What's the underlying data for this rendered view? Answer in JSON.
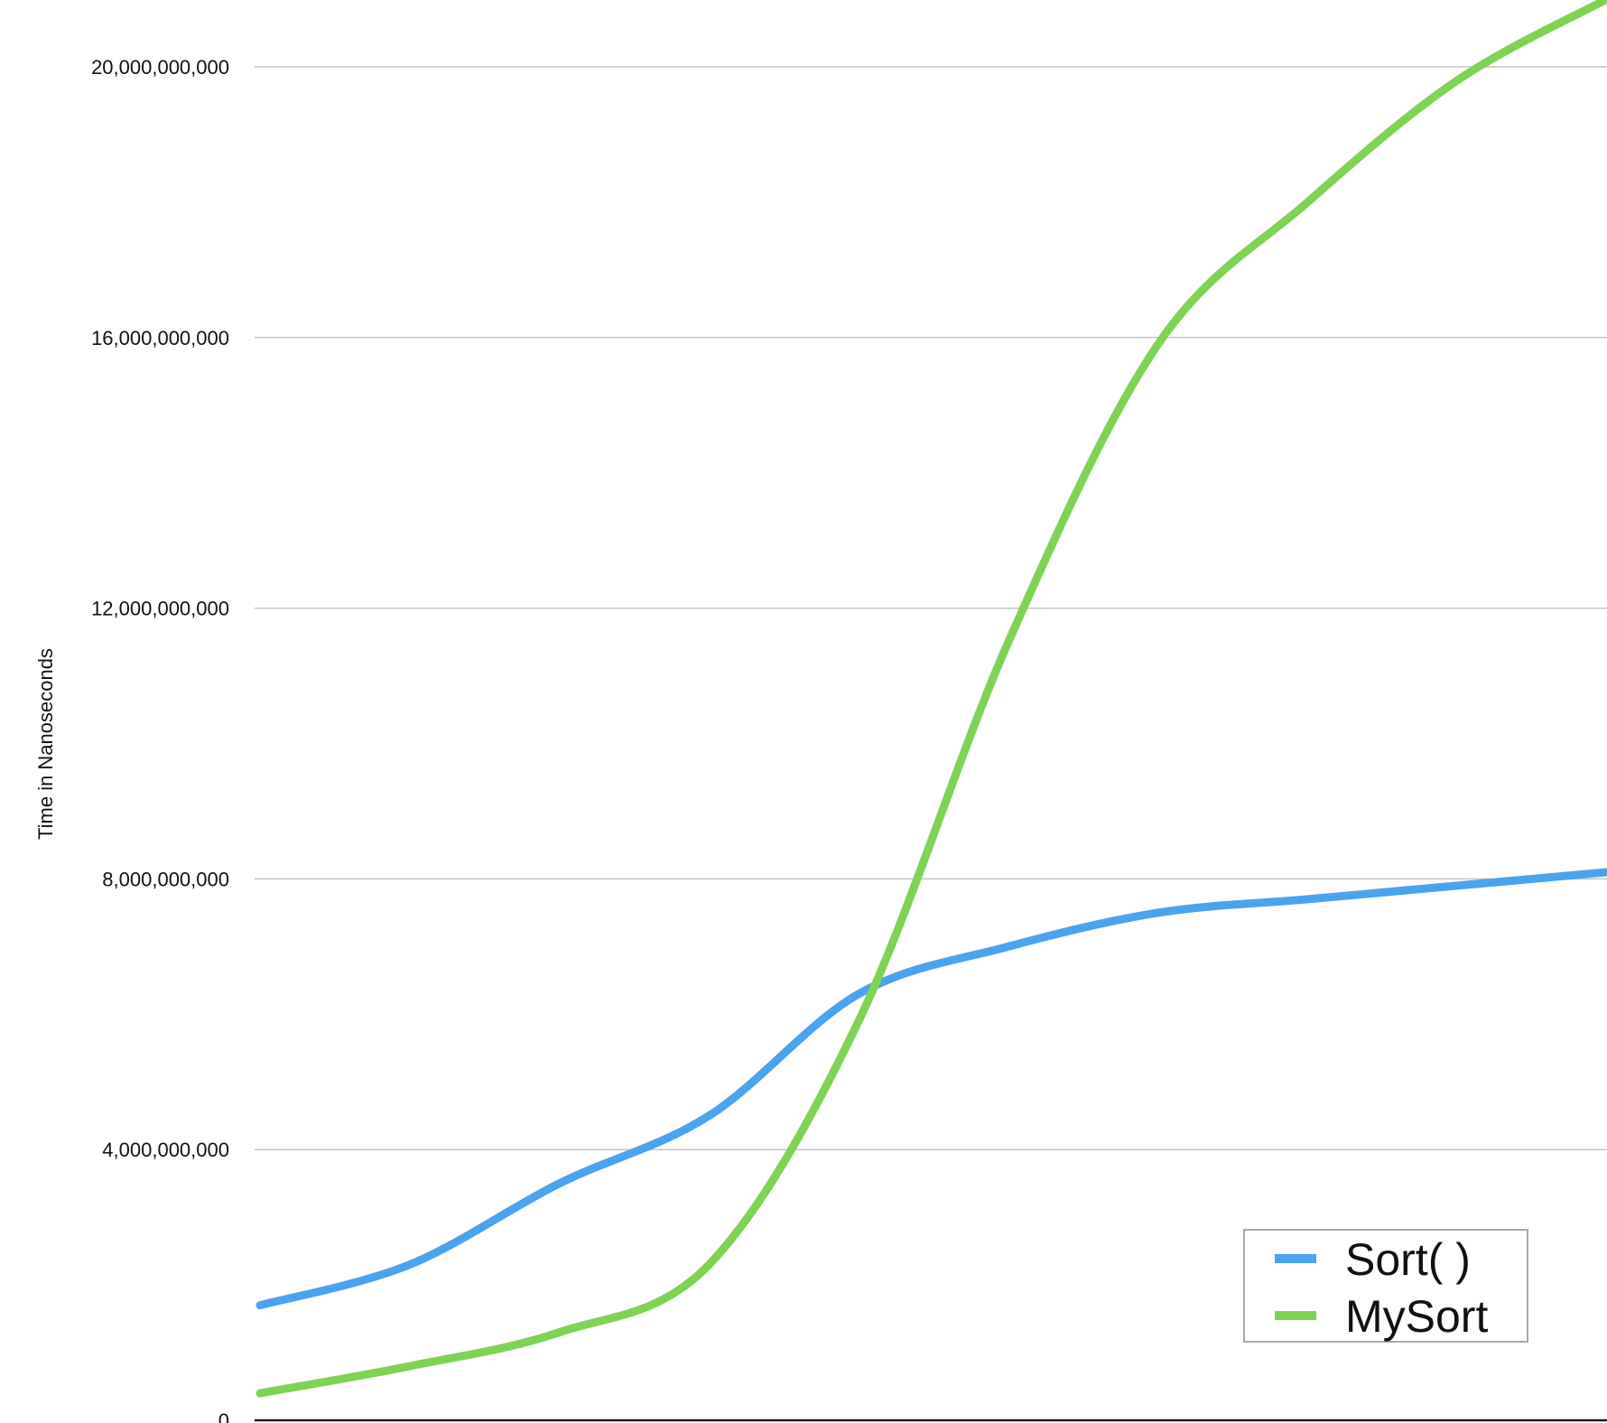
{
  "chart_data": {
    "type": "line",
    "title": "",
    "xlabel": "",
    "ylabel": "Time in Nanoseconds",
    "ylim": [
      0,
      20000000000
    ],
    "yticks": [
      0,
      4000000000,
      8000000000,
      12000000000,
      16000000000,
      20000000000
    ],
    "ytick_labels": [
      "0",
      "4,000,000,000",
      "8,000,000,000",
      "12,000,000,000",
      "16,000,000,000",
      "20,000,000,000"
    ],
    "x": [
      1,
      2,
      3,
      4,
      5,
      6,
      7,
      8,
      9,
      10
    ],
    "grid": "horizontal",
    "smooth": true,
    "legend_position": "bottom-right",
    "series": [
      {
        "name": "Sort( )",
        "color": "#4aa3ef",
        "values": [
          1700000000,
          2300000000,
          3500000000,
          4500000000,
          6300000000,
          7000000000,
          7500000000,
          7700000000,
          7900000000,
          8100000000
        ]
      },
      {
        "name": "MySort",
        "color": "#7fd354",
        "values": [
          400000000,
          800000000,
          1300000000,
          2300000000,
          5900000000,
          11500000000,
          15900000000,
          18000000000,
          19800000000,
          21000000000
        ]
      }
    ]
  }
}
